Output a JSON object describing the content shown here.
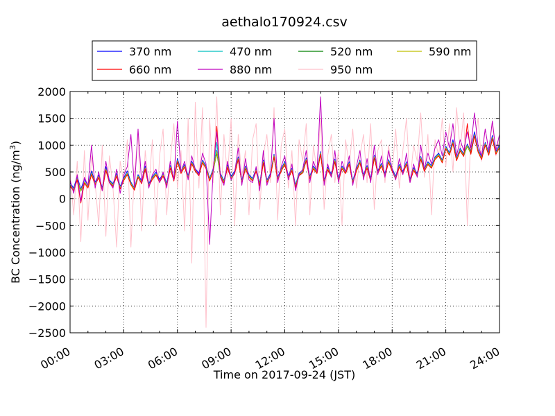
{
  "chart_data": {
    "type": "line",
    "title": "aethalo170924.csv",
    "xlabel": "Time on 2017-09-24 (JST)",
    "ylabel": "BC Concentration (ng/m³)",
    "ylabel_base": "BC Concentration (ng/m",
    "ylabel_sup": "3",
    "ylabel_tail": ")",
    "xlim": [
      0,
      24
    ],
    "ylim": [
      -2500,
      2000
    ],
    "x_unit": "hours",
    "x_ticks": [
      0,
      3,
      6,
      9,
      12,
      15,
      18,
      21,
      24
    ],
    "x_tick_labels": [
      "00:00",
      "03:00",
      "06:00",
      "09:00",
      "12:00",
      "15:00",
      "18:00",
      "21:00",
      "24:00"
    ],
    "y_ticks": [
      2000,
      1500,
      1000,
      500,
      0,
      -500,
      -1000,
      -1500,
      -2000,
      -2500
    ],
    "y_tick_labels": [
      "2000",
      "1500",
      "1000",
      "500",
      "0",
      "−500",
      "−1000",
      "−1500",
      "−2000",
      "−2500"
    ],
    "grid": true,
    "legend_position": "top, above plot",
    "series": [
      {
        "name": "370 nm",
        "color": "#0000ff",
        "values": [
          300,
          200,
          420,
          180,
          360,
          250,
          520,
          310,
          440,
          200,
          600,
          350,
          280,
          470,
          230,
          390,
          520,
          310,
          200,
          450,
          330,
          610,
          280,
          410,
          500,
          360,
          470,
          290,
          620,
          380,
          750,
          520,
          640,
          430,
          700,
          560,
          480,
          720,
          610,
          380,
          560,
          900,
          470,
          340,
          630,
          420,
          520,
          780,
          340,
          610,
          450,
          380,
          560,
          290,
          720,
          350,
          470,
          830,
          400,
          560,
          690,
          430,
          570,
          260,
          480,
          530,
          760,
          420,
          610,
          520,
          880,
          340,
          590,
          460,
          740,
          380,
          610,
          520,
          690,
          340,
          560,
          720,
          450,
          620,
          380,
          810,
          520,
          660,
          470,
          730,
          560,
          420,
          640,
          510,
          690,
          360,
          580,
          470,
          790,
          560,
          690,
          620,
          780,
          850,
          720,
          980,
          860,
          1100,
          760,
          940,
          840,
          1020,
          880,
          1250,
          920,
          780,
          1050,
          860,
          1180,
          880,
          1000
        ]
      },
      {
        "name": "470 nm",
        "color": "#00bfbf",
        "values": [
          260,
          180,
          380,
          160,
          320,
          230,
          480,
          290,
          420,
          180,
          560,
          330,
          260,
          450,
          210,
          370,
          480,
          290,
          190,
          430,
          310,
          580,
          260,
          390,
          470,
          340,
          450,
          270,
          600,
          360,
          720,
          500,
          620,
          410,
          680,
          540,
          460,
          700,
          590,
          360,
          540,
          1050,
          450,
          320,
          610,
          400,
          500,
          760,
          320,
          590,
          430,
          360,
          540,
          270,
          700,
          330,
          450,
          810,
          380,
          540,
          670,
          410,
          550,
          240,
          460,
          510,
          740,
          400,
          590,
          500,
          860,
          320,
          570,
          440,
          720,
          360,
          590,
          500,
          670,
          320,
          540,
          700,
          430,
          600,
          360,
          790,
          500,
          640,
          450,
          710,
          540,
          400,
          620,
          490,
          670,
          340,
          560,
          450,
          770,
          540,
          670,
          600,
          760,
          830,
          700,
          960,
          840,
          1060,
          740,
          920,
          820,
          1000,
          860,
          1200,
          900,
          760,
          1030,
          840,
          1150,
          860,
          980
        ]
      },
      {
        "name": "520 nm",
        "color": "#008000",
        "values": [
          240,
          160,
          360,
          140,
          300,
          210,
          460,
          270,
          400,
          160,
          540,
          310,
          240,
          430,
          190,
          350,
          460,
          270,
          170,
          410,
          290,
          560,
          240,
          370,
          450,
          320,
          430,
          250,
          580,
          340,
          700,
          480,
          600,
          390,
          660,
          520,
          440,
          680,
          570,
          340,
          520,
          850,
          430,
          300,
          590,
          380,
          480,
          740,
          300,
          570,
          410,
          340,
          520,
          250,
          680,
          310,
          430,
          790,
          360,
          520,
          650,
          390,
          530,
          220,
          440,
          490,
          720,
          380,
          570,
          480,
          840,
          300,
          550,
          420,
          700,
          340,
          570,
          480,
          650,
          300,
          520,
          680,
          410,
          580,
          340,
          770,
          480,
          620,
          430,
          690,
          520,
          380,
          600,
          470,
          650,
          320,
          540,
          430,
          750,
          520,
          650,
          580,
          740,
          810,
          680,
          940,
          820,
          1040,
          720,
          900,
          800,
          980,
          840,
          1180,
          880,
          740,
          1010,
          820,
          1130,
          840,
          960
        ]
      },
      {
        "name": "590 nm",
        "color": "#bfbf00",
        "values": [
          250,
          170,
          370,
          150,
          310,
          220,
          470,
          280,
          410,
          170,
          550,
          320,
          250,
          440,
          200,
          360,
          470,
          280,
          180,
          420,
          300,
          570,
          250,
          380,
          460,
          330,
          440,
          260,
          590,
          350,
          710,
          490,
          610,
          400,
          670,
          530,
          450,
          690,
          580,
          350,
          530,
          880,
          440,
          310,
          600,
          390,
          490,
          750,
          310,
          580,
          420,
          350,
          530,
          260,
          690,
          320,
          440,
          800,
          370,
          530,
          660,
          400,
          540,
          230,
          450,
          500,
          730,
          390,
          580,
          490,
          850,
          310,
          560,
          430,
          710,
          350,
          580,
          490,
          660,
          310,
          530,
          690,
          420,
          590,
          350,
          780,
          490,
          630,
          440,
          700,
          530,
          390,
          610,
          480,
          660,
          330,
          550,
          440,
          760,
          530,
          660,
          590,
          750,
          820,
          690,
          950,
          830,
          1050,
          730,
          910,
          810,
          990,
          850,
          1190,
          890,
          750,
          1020,
          830,
          1140,
          850,
          970
        ]
      },
      {
        "name": "660 nm",
        "color": "#ff0000",
        "values": [
          230,
          150,
          350,
          -80,
          290,
          200,
          450,
          260,
          390,
          150,
          530,
          300,
          230,
          420,
          180,
          340,
          450,
          260,
          160,
          400,
          280,
          550,
          230,
          360,
          440,
          310,
          420,
          240,
          570,
          330,
          690,
          470,
          590,
          380,
          650,
          510,
          430,
          670,
          560,
          330,
          510,
          1350,
          420,
          290,
          580,
          370,
          470,
          730,
          290,
          560,
          400,
          330,
          510,
          240,
          670,
          300,
          420,
          780,
          350,
          510,
          640,
          380,
          520,
          210,
          430,
          480,
          710,
          370,
          560,
          470,
          830,
          290,
          540,
          410,
          690,
          330,
          560,
          470,
          640,
          290,
          510,
          670,
          400,
          570,
          330,
          760,
          470,
          610,
          420,
          680,
          510,
          370,
          590,
          460,
          640,
          310,
          530,
          420,
          740,
          510,
          640,
          570,
          730,
          800,
          670,
          930,
          810,
          1030,
          710,
          890,
          790,
          1400,
          830,
          1170,
          870,
          730,
          1000,
          810,
          1120,
          830,
          950
        ]
      },
      {
        "name": "880 nm",
        "color": "#bf00bf",
        "values": [
          350,
          100,
          450,
          -50,
          400,
          250,
          1000,
          200,
          500,
          150,
          700,
          300,
          200,
          550,
          100,
          450,
          600,
          1200,
          200,
          1300,
          300,
          700,
          200,
          450,
          550,
          300,
          500,
          200,
          700,
          350,
          1450,
          500,
          700,
          350,
          800,
          550,
          450,
          850,
          650,
          -850,
          550,
          1250,
          400,
          250,
          700,
          350,
          500,
          950,
          250,
          750,
          350,
          300,
          600,
          150,
          900,
          250,
          450,
          1500,
          300,
          600,
          800,
          350,
          650,
          150,
          450,
          550,
          900,
          300,
          700,
          500,
          1900,
          250,
          650,
          400,
          900,
          300,
          700,
          500,
          800,
          250,
          600,
          900,
          350,
          750,
          300,
          1000,
          450,
          800,
          400,
          900,
          550,
          350,
          750,
          450,
          850,
          300,
          650,
          400,
          1000,
          550,
          850,
          650,
          950,
          1100,
          800,
          1250,
          950,
          1400,
          800,
          1100,
          900,
          1250,
          950,
          1600,
          1000,
          800,
          1300,
          900,
          1450,
          900,
          1200
        ]
      },
      {
        "name": "950 nm",
        "color": "#ffc0cb",
        "values": [
          500,
          -300,
          700,
          -800,
          900,
          -400,
          800,
          300,
          -500,
          1000,
          -700,
          800,
          200,
          -900,
          700,
          300,
          1100,
          -900,
          500,
          1200,
          -600,
          900,
          200,
          1100,
          -500,
          800,
          1300,
          -300,
          700,
          1400,
          200,
          900,
          -600,
          1500,
          -1200,
          1800,
          200,
          1700,
          -2400,
          1500,
          300,
          1900,
          -300,
          1200,
          400,
          1500,
          -500,
          1200,
          400,
          900,
          -300,
          1100,
          1400,
          -200,
          800,
          1200,
          300,
          1700,
          -400,
          1000,
          1300,
          200,
          900,
          -500,
          1100,
          700,
          1400,
          -300,
          1000,
          500,
          1500,
          -200,
          800,
          1200,
          300,
          900,
          -500,
          1100,
          600,
          1300,
          200,
          800,
          1200,
          300,
          1400,
          -200,
          900,
          1100,
          300,
          1000,
          500,
          1300,
          200,
          900,
          1500,
          300,
          1000,
          700,
          1600,
          400,
          1200,
          -300,
          1100,
          800,
          1500,
          600,
          1400,
          500,
          1700,
          900,
          1600,
          -500,
          1200,
          1000,
          1500,
          700,
          1300,
          900,
          1400,
          800,
          1100
        ]
      }
    ]
  }
}
